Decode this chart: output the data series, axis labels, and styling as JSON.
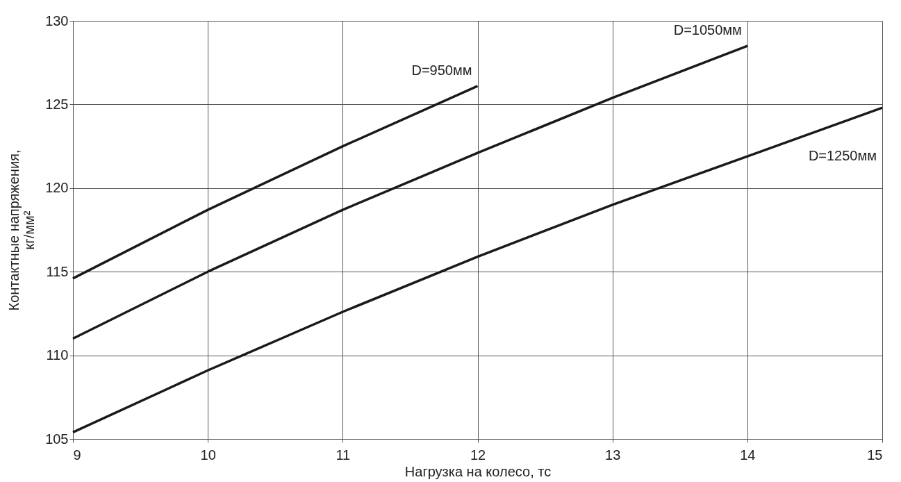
{
  "chart_data": {
    "type": "line",
    "xlabel": "Нагрузка на колесо, тс",
    "ylabel": "Контактные напряжения,\nкг/мм²",
    "xlim": [
      9,
      15
    ],
    "xticks": [
      9,
      10,
      11,
      12,
      13,
      14,
      15
    ],
    "ylim": [
      105,
      130
    ],
    "yticks": [
      105,
      110,
      115,
      120,
      125,
      130
    ],
    "grid": true,
    "legend": false,
    "marker": "none",
    "line_style": "solid",
    "series": [
      {
        "name": "D=950мм",
        "color": "#1a1a1a",
        "x": [
          9,
          10,
          11,
          12
        ],
        "values": [
          114.6,
          118.7,
          122.5,
          126.1
        ]
      },
      {
        "name": "D=1050мм",
        "color": "#1a1a1a",
        "x": [
          9,
          10,
          11,
          12,
          13,
          14
        ],
        "values": [
          111.0,
          115.0,
          118.7,
          122.1,
          125.4,
          128.5
        ]
      },
      {
        "name": "D=1250мм",
        "color": "#1a1a1a",
        "x": [
          9,
          10,
          11,
          12,
          13,
          14,
          15
        ],
        "values": [
          105.4,
          109.1,
          112.6,
          115.9,
          119.0,
          121.9,
          124.8
        ]
      }
    ]
  }
}
